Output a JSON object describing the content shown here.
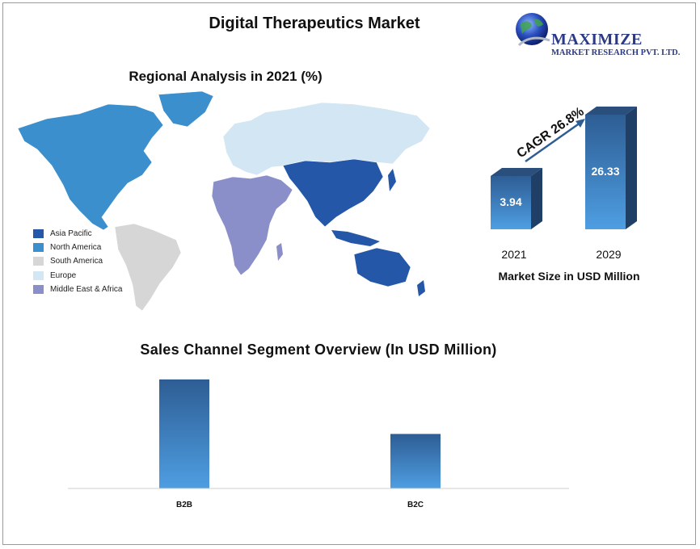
{
  "title": "Digital Therapeutics Market",
  "logo": {
    "name": "MAXIMIZE",
    "subtitle": "MARKET RESEARCH PVT. LTD."
  },
  "map_section": {
    "title": "Regional Analysis in 2021 (%)",
    "legend": [
      {
        "label": "Asia Pacific",
        "color": "#2457a8"
      },
      {
        "label": "North America",
        "color": "#3b8fcc"
      },
      {
        "label": "South America",
        "color": "#d6d6d6"
      },
      {
        "label": "Europe",
        "color": "#d3e6f3"
      },
      {
        "label": "Middle East & Africa",
        "color": "#8b8fc9"
      }
    ]
  },
  "chart_data": [
    {
      "type": "bar",
      "title": "",
      "categories": [
        "2021",
        "2029"
      ],
      "values": [
        3.94,
        26.33
      ],
      "annotation": "CAGR 26.8%",
      "xlabel": "Market Size in USD Million",
      "ylabel": ""
    },
    {
      "type": "bar",
      "title": "Sales Channel Segment Overview (In USD Million)",
      "categories": [
        "B2B",
        "B2C"
      ],
      "values": [
        100,
        50
      ],
      "xlabel": "",
      "ylabel": ""
    }
  ]
}
